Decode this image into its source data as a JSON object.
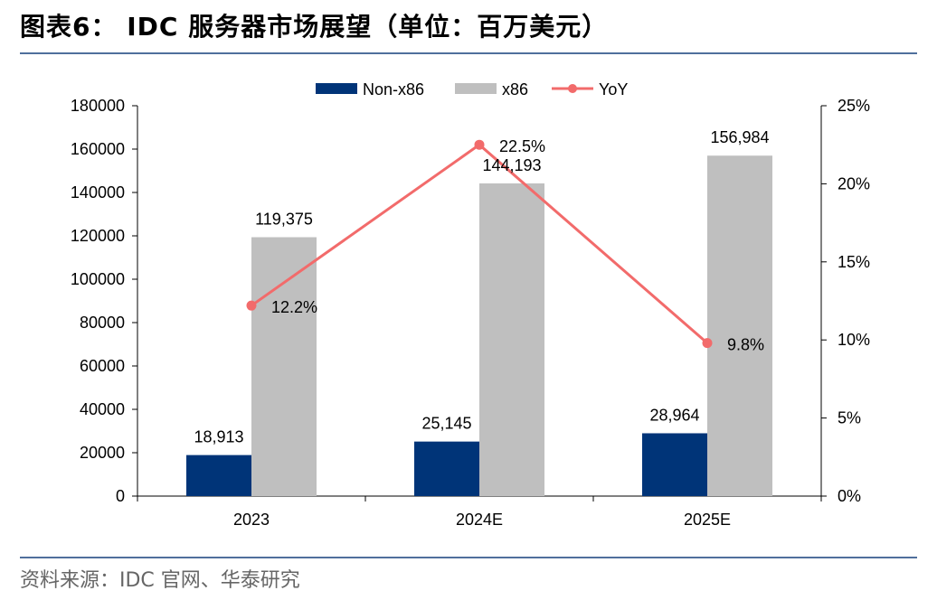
{
  "title": "图表6： IDC 服务器市场展望（单位：百万美元）",
  "source": "资料来源：IDC 官网、华泰研究",
  "colors": {
    "non_x86": "#003478",
    "x86": "#bfbfbf",
    "yoy": "#f26b6b",
    "rule": "#4f6f9c"
  },
  "chart_data": {
    "type": "bar",
    "categories": [
      "2023",
      "2024E",
      "2025E"
    ],
    "series": [
      {
        "name": "Non-x86",
        "type": "bar",
        "axis": "left",
        "values": [
          18913,
          25145,
          28964
        ],
        "labels": [
          "18,913",
          "25,145",
          "28,964"
        ]
      },
      {
        "name": "x86",
        "type": "bar",
        "axis": "left",
        "values": [
          119375,
          144193,
          156984
        ],
        "labels": [
          "119,375",
          "144,193",
          "156,984"
        ]
      },
      {
        "name": "YoY",
        "type": "line",
        "axis": "right",
        "values": [
          12.2,
          22.5,
          9.8
        ],
        "labels": [
          "12.2%",
          "22.5%",
          "9.8%"
        ]
      }
    ],
    "ylim_left": [
      0,
      180000
    ],
    "yticks_left": [
      "0",
      "20000",
      "40000",
      "60000",
      "80000",
      "100000",
      "120000",
      "140000",
      "160000",
      "180000"
    ],
    "ylim_right": [
      0,
      25
    ],
    "yticks_right": [
      "0%",
      "5%",
      "10%",
      "15%",
      "20%",
      "25%"
    ],
    "legend_position": "top-center",
    "grid": false
  }
}
